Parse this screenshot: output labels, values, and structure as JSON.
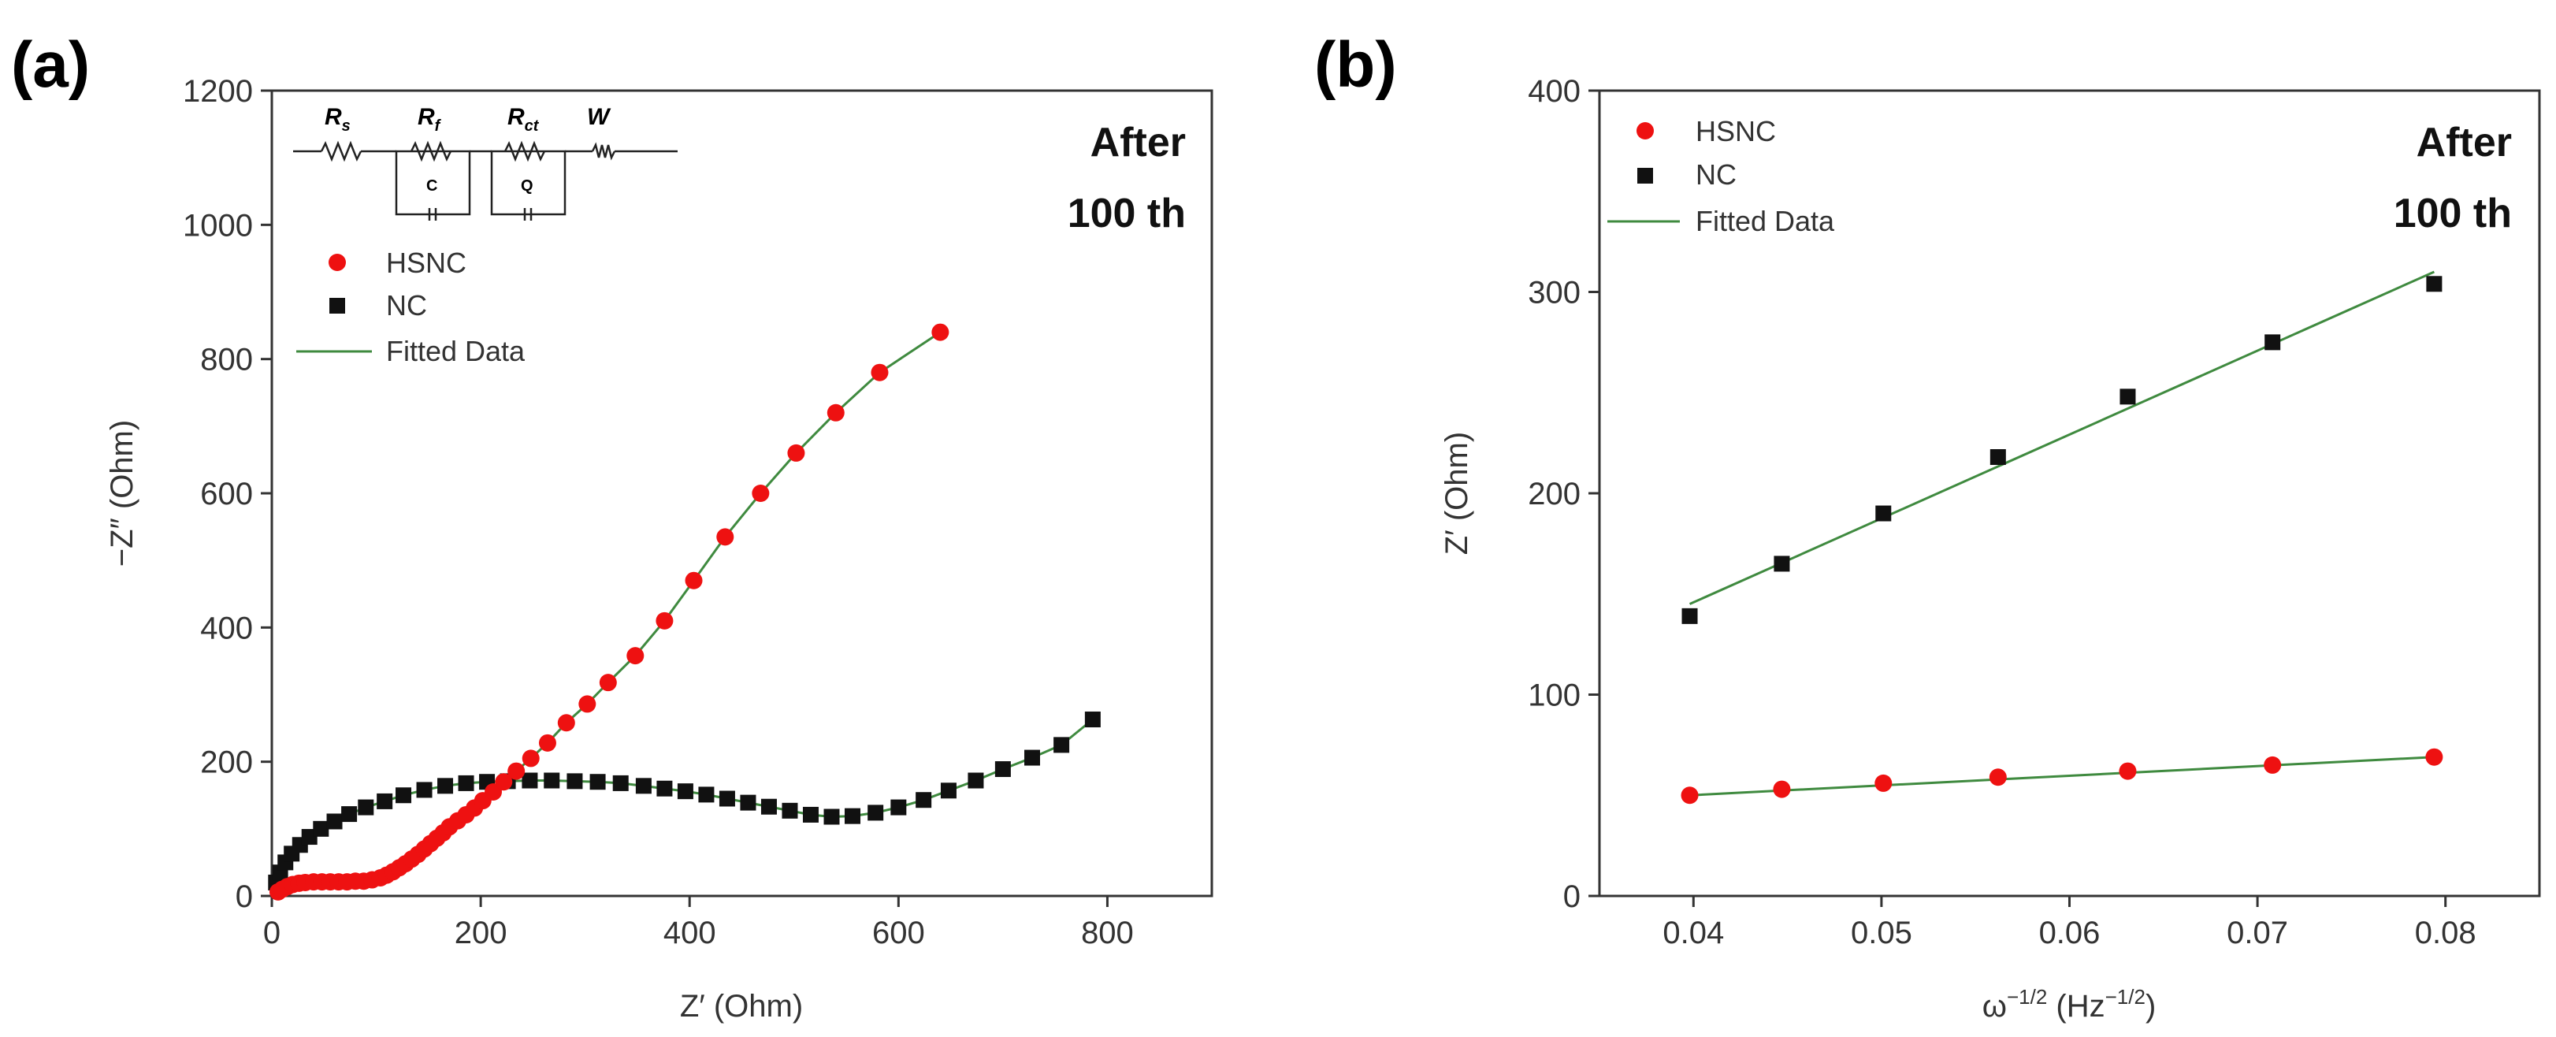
{
  "chart_data": [
    {
      "panel": "(a)",
      "type": "scatter",
      "xlabel": "Z′ (Ohm)",
      "ylabel": "−Z″ (Ohm)",
      "xlim": [
        0,
        900
      ],
      "ylim": [
        0,
        1200
      ],
      "xticks": [
        0,
        200,
        400,
        600,
        800
      ],
      "yticks": [
        0,
        200,
        400,
        600,
        800,
        1000,
        1200
      ],
      "annotation": [
        "After",
        "100 th"
      ],
      "legend": [
        "HSNC",
        "NC",
        "Fitted Data"
      ],
      "circuit": {
        "labels": [
          "R",
          "R",
          "R",
          "W"
        ],
        "subs": [
          "s",
          "f",
          "ct",
          ""
        ],
        "elements": [
          "C",
          "Q"
        ]
      },
      "series": [
        {
          "name": "HSNC",
          "color": "#ee1111",
          "marker": "circle",
          "x": [
            6,
            10,
            15,
            20,
            26,
            32,
            40,
            48,
            56,
            64,
            72,
            80,
            88,
            96,
            104,
            110,
            116,
            122,
            128,
            134,
            140,
            146,
            152,
            158,
            164,
            170,
            178,
            186,
            194,
            202,
            212,
            222,
            234,
            248,
            264,
            282,
            302,
            322,
            348,
            376,
            404,
            434,
            468,
            502,
            540,
            582,
            640
          ],
          "y": [
            6,
            10,
            14,
            17,
            19,
            20,
            21,
            21,
            21,
            21,
            21,
            22,
            22,
            24,
            27,
            31,
            36,
            42,
            48,
            55,
            62,
            70,
            78,
            86,
            94,
            103,
            112,
            121,
            131,
            142,
            155,
            170,
            186,
            205,
            228,
            258,
            286,
            318,
            358,
            410,
            470,
            535,
            600,
            660,
            720,
            780,
            840
          ]
        },
        {
          "name": "NC",
          "color": "#111111",
          "marker": "square",
          "x": [
            4,
            8,
            13,
            19,
            27,
            36,
            47,
            60,
            74,
            90,
            108,
            126,
            146,
            166,
            186,
            206,
            226,
            247,
            268,
            290,
            312,
            334,
            356,
            376,
            396,
            416,
            436,
            456,
            476,
            496,
            516,
            536,
            556,
            578,
            600,
            624,
            648,
            674,
            700,
            728,
            756,
            786
          ],
          "y": [
            20,
            35,
            50,
            63,
            76,
            88,
            100,
            111,
            122,
            132,
            141,
            150,
            158,
            164,
            168,
            170,
            171,
            172,
            172,
            171,
            170,
            168,
            164,
            160,
            156,
            151,
            145,
            139,
            133,
            127,
            121,
            118,
            119,
            124,
            132,
            143,
            157,
            172,
            189,
            206,
            225,
            263
          ]
        }
      ]
    },
    {
      "panel": "(b)",
      "type": "scatter",
      "xlabel": "ω",
      "xlabel_sup1": "−1/2",
      "xlabel_mid": " (Hz",
      "xlabel_sup2": "−1/2",
      "xlabel_end": ")",
      "ylabel": "Z′ (Ohm)",
      "xlim": [
        0.035,
        0.085
      ],
      "ylim": [
        0,
        400
      ],
      "xticks": [
        0.04,
        0.05,
        0.06,
        0.07,
        0.08
      ],
      "xtick_labels": [
        "0.04",
        "0.05",
        "0.06",
        "0.07",
        "0.08"
      ],
      "yticks": [
        0,
        100,
        200,
        300,
        400
      ],
      "annotation": [
        "After",
        "100 th"
      ],
      "legend": [
        "HSNC",
        "NC",
        "Fitted Data"
      ],
      "series": [
        {
          "name": "HSNC",
          "color": "#ee1111",
          "marker": "circle",
          "x": [
            0.0398,
            0.0447,
            0.0501,
            0.0562,
            0.0631,
            0.0708,
            0.0794
          ],
          "y": [
            50,
            53,
            56,
            59,
            62,
            65,
            69
          ]
        },
        {
          "name": "NC",
          "color": "#111111",
          "marker": "square",
          "x": [
            0.0398,
            0.0447,
            0.0501,
            0.0562,
            0.0631,
            0.0708,
            0.0794
          ],
          "y": [
            139,
            165,
            190,
            218,
            248,
            275,
            304
          ]
        }
      ],
      "fits": [
        {
          "name": "HSNC fit",
          "x": [
            0.0398,
            0.0794
          ],
          "y": [
            50,
            69
          ]
        },
        {
          "name": "NC fit",
          "x": [
            0.0398,
            0.0794
          ],
          "y": [
            145,
            310
          ]
        }
      ]
    }
  ],
  "colors": {
    "fit": "#3f8a3f",
    "hsnc": "#ee1111",
    "nc": "#111111",
    "axis": "#333333"
  }
}
